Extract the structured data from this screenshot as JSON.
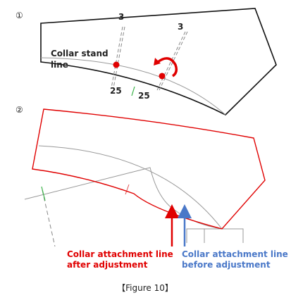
{
  "panel1": {
    "label": "①",
    "top_left_mark": "3",
    "top_right_mark": "3",
    "collar_stand_line": [
      "Collar stand",
      "line"
    ],
    "bottom_left_mark": "25",
    "bottom_right_mark": "25"
  },
  "panel2": {
    "label": "②",
    "after_label": [
      "Collar attachment line",
      "after adjustment"
    ],
    "before_label": [
      "Collar attachment line",
      "before adjustment"
    ]
  },
  "caption": "【Figure 10】"
}
